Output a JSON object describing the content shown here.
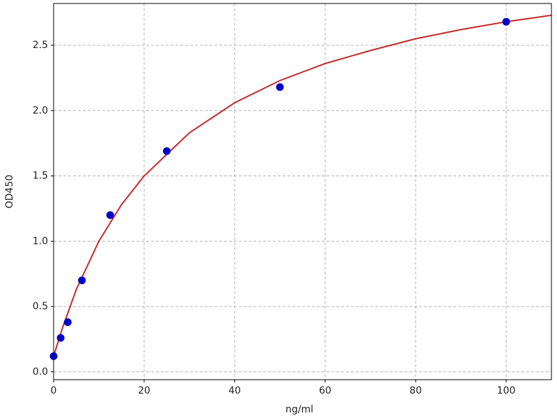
{
  "chart_data": {
    "type": "scatter",
    "x_label": "ng/ml",
    "y_label": "OD450",
    "x": [
      0,
      1.56,
      3.125,
      6.25,
      12.5,
      25,
      50,
      100
    ],
    "values": [
      0.12,
      0.26,
      0.38,
      0.7,
      1.2,
      1.69,
      2.18,
      2.68
    ],
    "color": "#0000c8",
    "fit": {
      "type": "line",
      "color": "#c8282a",
      "x": [
        0,
        2,
        5,
        10,
        15,
        20,
        30,
        40,
        50,
        60,
        70,
        80,
        90,
        100,
        110
      ],
      "values": [
        0.12,
        0.34,
        0.63,
        1.0,
        1.28,
        1.5,
        1.83,
        2.06,
        2.23,
        2.36,
        2.46,
        2.55,
        2.62,
        2.68,
        2.73
      ]
    },
    "xlim": [
      0,
      110
    ],
    "xticks": [
      0,
      20,
      40,
      60,
      80,
      100
    ],
    "ylim": [
      -0.06,
      2.82
    ],
    "yticks": [
      {
        "value": 0,
        "label": "0.0"
      },
      0.5,
      {
        "value": 1,
        "label": "1.0"
      },
      1.5,
      {
        "value": 2,
        "label": "2.0"
      },
      2.5
    ],
    "grid": true
  }
}
